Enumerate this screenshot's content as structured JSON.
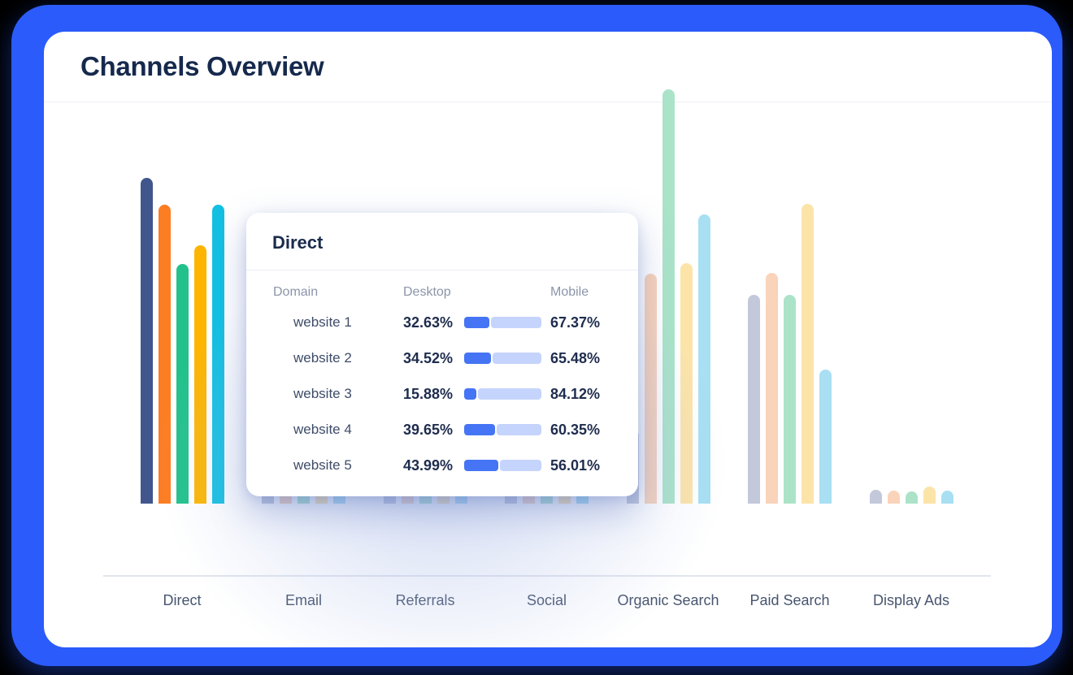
{
  "window": {
    "title": "Channels Overview"
  },
  "theme": {
    "frame_blue": "#2B5BFB",
    "card_bg": "#FFFFFF",
    "title_color": "#16294D",
    "axis_color": "#E1E5EC",
    "label_color": "#47556F",
    "progress_desktop_blue": "#4575F5",
    "progress_mobile_blue": "#C5D4FC"
  },
  "chart_data": {
    "type": "bar",
    "title": "Channels Overview",
    "categories": [
      "Direct",
      "Email",
      "Referrals",
      "Social",
      "Organic Search",
      "Paid Search",
      "Display Ads"
    ],
    "highlighted_category": "Direct",
    "ylabel": "",
    "xlabel": "",
    "axis_note": "no y-axis ticks shown; values are bar heights in screen px (baseline 0)",
    "legend_position": "none",
    "grid": false,
    "series": [
      {
        "name": "website 1",
        "color": "#40568C",
        "faded_color": "#C3C8DA",
        "values": [
          401,
          28,
          63,
          120,
          91,
          257,
          17
        ]
      },
      {
        "name": "website 2",
        "color": "#FD7D23",
        "faded_color": "#F9D3BA",
        "values": [
          368,
          27,
          63,
          118,
          283,
          284,
          16
        ]
      },
      {
        "name": "website 3",
        "color": "#22C18B",
        "faded_color": "#ABE3C9",
        "values": [
          295,
          26,
          58,
          112,
          510,
          257,
          15
        ]
      },
      {
        "name": "website 4",
        "color": "#FDB501",
        "faded_color": "#FCE4A9",
        "values": [
          318,
          33,
          73,
          126,
          296,
          369,
          21
        ]
      },
      {
        "name": "website 5",
        "color": "#14C0E2",
        "faded_color": "#A8DFF2",
        "values": [
          368,
          32,
          69,
          122,
          356,
          165,
          16
        ]
      }
    ]
  },
  "tooltip": {
    "title": "Direct",
    "columns": {
      "domain": "Domain",
      "desktop": "Desktop",
      "mobile": "Mobile"
    },
    "rows": [
      {
        "domain": "website 1",
        "dot_color": "#44568F",
        "desktop": "32.63%",
        "desktop_value": 32.63,
        "mobile": "67.37%"
      },
      {
        "domain": "website 2",
        "dot_color": "#FB7D23",
        "desktop": "34.52%",
        "desktop_value": 34.52,
        "mobile": "65.48%"
      },
      {
        "domain": "website 3",
        "dot_color": "#25C78E",
        "desktop": "15.88%",
        "desktop_value": 15.88,
        "mobile": "84.12%"
      },
      {
        "domain": "website 4",
        "dot_color": "#FFB703",
        "desktop": "39.65%",
        "desktop_value": 39.65,
        "mobile": "60.35%"
      },
      {
        "domain": "website 5",
        "dot_color": "#17BDE5",
        "desktop": "43.99%",
        "desktop_value": 43.99,
        "mobile": "56.01%"
      }
    ]
  }
}
